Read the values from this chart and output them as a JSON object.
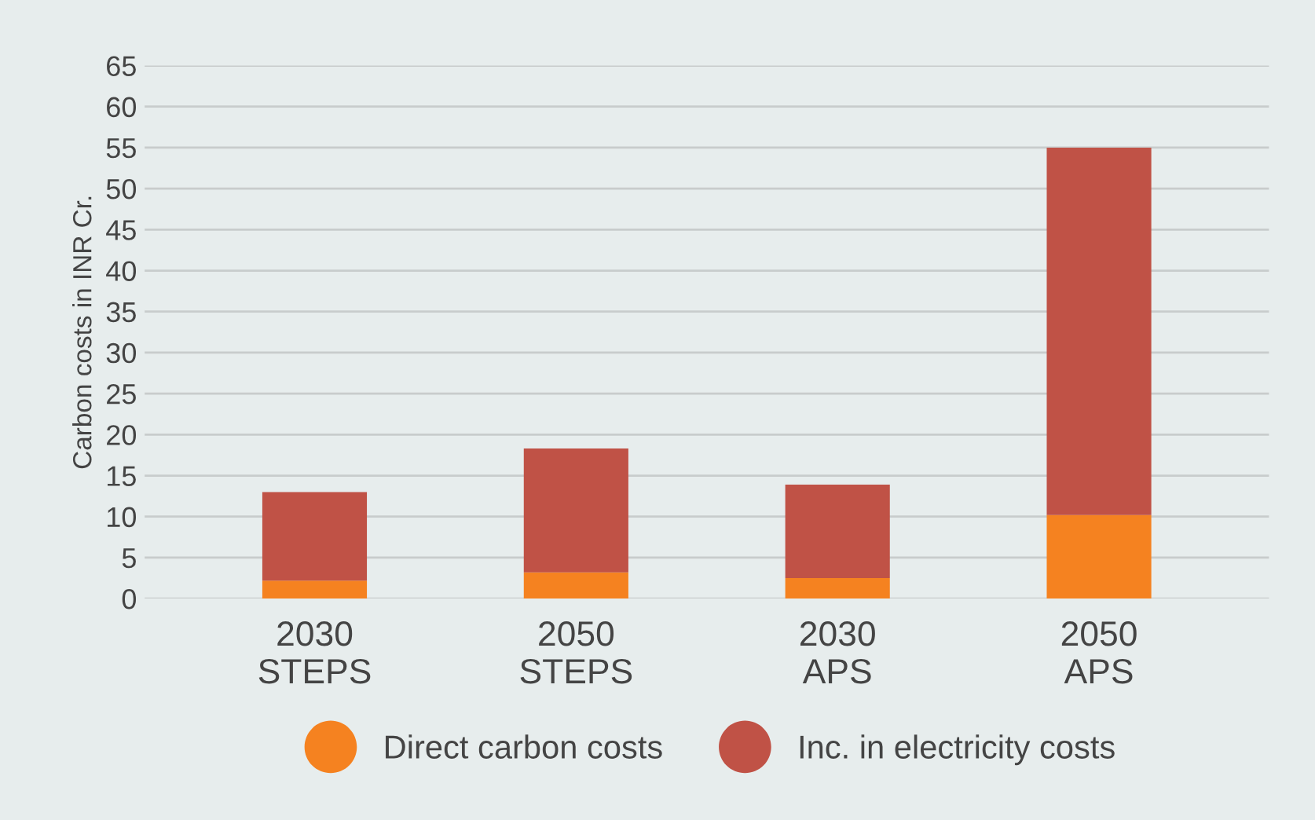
{
  "chart_data": {
    "type": "bar",
    "stacked": true,
    "ylabel": "Carbon costs in INR Cr.",
    "categories": [
      "2030\nSTEPS",
      "2050\nSTEPS",
      "2030\nAPS",
      "2050\nAPS"
    ],
    "series": [
      {
        "name": "Direct carbon costs",
        "color": "#f58220",
        "values": [
          2.2,
          3.2,
          2.5,
          10.2
        ]
      },
      {
        "name": "Inc. in electricity costs",
        "color": "#c05246",
        "values": [
          10.8,
          15.1,
          11.4,
          44.8
        ]
      }
    ],
    "ylim": [
      0,
      65
    ],
    "yticks": [
      0,
      5,
      10,
      15,
      20,
      25,
      30,
      35,
      40,
      45,
      50,
      55,
      60,
      65
    ],
    "grid": "y",
    "legend": "bottom"
  }
}
